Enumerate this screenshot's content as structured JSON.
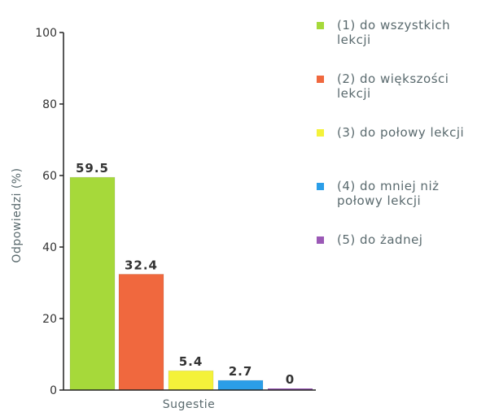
{
  "chart_data": {
    "type": "bar",
    "categories": [
      "(1) do wszystkich lekcji",
      "(2) do większości lekcji",
      "(3) do połowy lekcji",
      "(4) do mniej niż połowy lekcji",
      "(5) do żadnej"
    ],
    "values": [
      59.5,
      32.4,
      5.4,
      2.7,
      0
    ],
    "value_labels": [
      "59.5",
      "32.4",
      "5.4",
      "2.7",
      "0"
    ],
    "colors": [
      "#a6d93a",
      "#f0683e",
      "#f4f23a",
      "#2b9ee8",
      "#9b59b6"
    ],
    "xlabel": "Sugestie",
    "ylabel": "Odpowiedzi (%)",
    "ylim": [
      0,
      100
    ],
    "yticks": [
      "0",
      "20",
      "40",
      "60",
      "80",
      "100"
    ],
    "grid": false,
    "legend_position": "right",
    "legend": [
      "(1) do wszystkich lekcji",
      "(2) do większości lekcji",
      "(3) do połowy lekcji",
      "(4) do mniej niż połowy lekcji",
      "(5) do żadnej"
    ]
  }
}
